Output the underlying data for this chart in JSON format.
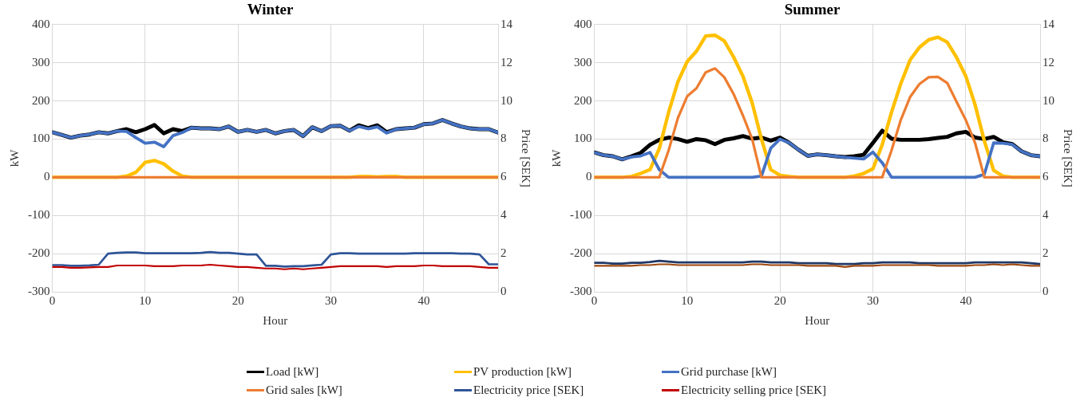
{
  "chart_data": [
    {
      "type": "line",
      "title": "Winter",
      "xlabel": "Hour",
      "ylabel": "kW",
      "y2label": "Price [SEK]",
      "x": [
        0,
        1,
        2,
        3,
        4,
        5,
        6,
        7,
        8,
        9,
        10,
        11,
        12,
        13,
        14,
        15,
        16,
        17,
        18,
        19,
        20,
        21,
        22,
        23,
        24,
        25,
        26,
        27,
        28,
        29,
        30,
        31,
        32,
        33,
        34,
        35,
        36,
        37,
        38,
        39,
        40,
        41,
        42,
        43,
        44,
        45,
        46,
        47,
        48
      ],
      "xlim": [
        0,
        48
      ],
      "xticks": [
        0,
        10,
        20,
        30,
        40
      ],
      "ylim": [
        -300,
        400
      ],
      "yticks": [
        -300,
        -200,
        -100,
        0,
        100,
        200,
        300,
        400
      ],
      "y2lim": [
        0,
        14
      ],
      "y2ticks": [
        0,
        2,
        4,
        6,
        8,
        10,
        12,
        14
      ],
      "grid": true,
      "legend": "bottom",
      "marker": "none",
      "line_style": "solid",
      "series": [
        {
          "name": "Load [kW]",
          "color": "#000000",
          "values": [
            118,
            111,
            104,
            109,
            112,
            118,
            115,
            121,
            126,
            118,
            126,
            137,
            115,
            126,
            121,
            130,
            128,
            128,
            126,
            133,
            119,
            124,
            119,
            124,
            115,
            121,
            124,
            108,
            131,
            121,
            134,
            135,
            122,
            136,
            129,
            136,
            118,
            126,
            128,
            130,
            139,
            141,
            150,
            141,
            133,
            128,
            126,
            126,
            117
          ]
        },
        {
          "name": "PV production [kW]",
          "color": "#ffc000",
          "values": [
            0,
            0,
            0,
            0,
            0,
            0,
            0,
            0,
            3,
            13,
            39,
            44,
            35,
            16,
            3,
            0,
            0,
            0,
            0,
            0,
            0,
            0,
            0,
            0,
            0,
            0,
            0,
            0,
            0,
            0,
            0,
            0,
            0,
            2,
            2,
            1,
            2,
            2,
            0,
            0,
            0,
            0,
            0,
            0,
            0,
            0,
            0,
            0,
            0
          ]
        },
        {
          "name": "Grid purchase [kW]",
          "color": "#4472c4",
          "values": [
            118,
            111,
            104,
            109,
            112,
            118,
            115,
            121,
            120,
            104,
            89,
            92,
            80,
            109,
            117,
            130,
            128,
            128,
            126,
            133,
            119,
            124,
            119,
            124,
            115,
            121,
            124,
            108,
            131,
            121,
            134,
            135,
            122,
            133,
            127,
            132,
            116,
            126,
            128,
            130,
            139,
            141,
            150,
            141,
            133,
            128,
            126,
            126,
            117
          ]
        },
        {
          "name": "Grid sales [kW]",
          "color": "#ed7d31",
          "values": [
            0,
            0,
            0,
            0,
            0,
            0,
            0,
            0,
            0,
            0,
            0,
            0,
            0,
            0,
            0,
            0,
            0,
            0,
            0,
            0,
            0,
            0,
            0,
            0,
            0,
            0,
            0,
            0,
            0,
            0,
            0,
            0,
            0,
            0,
            0,
            0,
            0,
            0,
            0,
            0,
            0,
            0,
            0,
            0,
            0,
            0,
            0,
            0,
            0
          ]
        },
        {
          "name": "Electricity price [SEK]",
          "color": "#2f5597",
          "axis": "y2",
          "values": [
            1.4,
            1.4,
            1.36,
            1.36,
            1.38,
            1.42,
            2.0,
            2.04,
            2.06,
            2.06,
            2.02,
            2.02,
            2.02,
            2.02,
            2.02,
            2.02,
            2.04,
            2.08,
            2.04,
            2.04,
            2.0,
            1.96,
            1.96,
            1.36,
            1.36,
            1.32,
            1.34,
            1.34,
            1.38,
            1.42,
            1.96,
            2.02,
            2.02,
            2.0,
            2.0,
            2.0,
            2.0,
            2.0,
            2.0,
            2.02,
            2.02,
            2.02,
            2.02,
            2.02,
            2.0,
            2.0,
            1.96,
            1.44,
            1.44
          ]
        },
        {
          "name": "Electricity selling price [SEK]",
          "color": "#c00000",
          "axis": "y2",
          "values": [
            1.3,
            1.3,
            1.26,
            1.26,
            1.28,
            1.3,
            1.3,
            1.38,
            1.38,
            1.38,
            1.38,
            1.34,
            1.34,
            1.34,
            1.38,
            1.38,
            1.38,
            1.42,
            1.38,
            1.34,
            1.3,
            1.3,
            1.26,
            1.22,
            1.22,
            1.18,
            1.22,
            1.18,
            1.22,
            1.26,
            1.3,
            1.34,
            1.34,
            1.34,
            1.34,
            1.34,
            1.3,
            1.34,
            1.34,
            1.34,
            1.38,
            1.38,
            1.34,
            1.34,
            1.34,
            1.34,
            1.3,
            1.26,
            1.26
          ]
        }
      ]
    },
    {
      "type": "line",
      "title": "Summer",
      "xlabel": "Hour",
      "ylabel": "kW",
      "y2label": "Price [SEK]",
      "x": [
        0,
        1,
        2,
        3,
        4,
        5,
        6,
        7,
        8,
        9,
        10,
        11,
        12,
        13,
        14,
        15,
        16,
        17,
        18,
        19,
        20,
        21,
        22,
        23,
        24,
        25,
        26,
        27,
        28,
        29,
        30,
        31,
        32,
        33,
        34,
        35,
        36,
        37,
        38,
        39,
        40,
        41,
        42,
        43,
        44,
        45,
        46,
        47,
        48
      ],
      "xlim": [
        0,
        48
      ],
      "xticks": [
        0,
        10,
        20,
        30,
        40
      ],
      "ylim": [
        -300,
        400
      ],
      "yticks": [
        -300,
        -200,
        -100,
        0,
        100,
        200,
        300,
        400
      ],
      "y2lim": [
        0,
        14
      ],
      "y2ticks": [
        0,
        2,
        4,
        6,
        8,
        10,
        12,
        14
      ],
      "grid": true,
      "marker": "none",
      "line_style": "solid",
      "series": [
        {
          "color": "#000000",
          "values": [
            65,
            58,
            55,
            47,
            55,
            64,
            85,
            98,
            104,
            100,
            93,
            100,
            97,
            87,
            98,
            102,
            108,
            101,
            104,
            96,
            104,
            90,
            72,
            56,
            60,
            58,
            55,
            53,
            55,
            59,
            90,
            122,
            101,
            98,
            98,
            98,
            100,
            103,
            106,
            115,
            119,
            104,
            100,
            106,
            92,
            87,
            68,
            58,
            55
          ]
        },
        {
          "color": "#ffc000",
          "values": [
            0,
            0,
            0,
            0,
            2,
            10,
            20,
            75,
            170,
            250,
            303,
            330,
            370,
            372,
            357,
            315,
            265,
            195,
            100,
            20,
            5,
            2,
            0,
            0,
            0,
            0,
            0,
            0,
            3,
            10,
            22,
            85,
            170,
            245,
            307,
            340,
            360,
            367,
            354,
            314,
            265,
            190,
            95,
            18,
            3,
            0,
            0,
            0,
            0
          ]
        },
        {
          "color": "#4472c4",
          "values": [
            65,
            58,
            55,
            47,
            53,
            56,
            65,
            20,
            0,
            0,
            0,
            0,
            0,
            0,
            0,
            0,
            0,
            0,
            3,
            76,
            100,
            90,
            72,
            56,
            60,
            58,
            55,
            52,
            50,
            48,
            66,
            38,
            0,
            0,
            0,
            0,
            0,
            0,
            0,
            0,
            0,
            0,
            8,
            90,
            89,
            86,
            68,
            58,
            55
          ]
        },
        {
          "color": "#ed7d31",
          "values": [
            0,
            0,
            0,
            0,
            0,
            0,
            0,
            0,
            70,
            155,
            212,
            233,
            275,
            285,
            262,
            218,
            162,
            100,
            0,
            0,
            0,
            0,
            0,
            0,
            0,
            0,
            0,
            0,
            0,
            0,
            0,
            0,
            70,
            150,
            210,
            244,
            262,
            263,
            247,
            198,
            150,
            90,
            0,
            0,
            0,
            0,
            0,
            0,
            0
          ]
        },
        {
          "color": "#203864",
          "axis": "y2",
          "values": [
            1.52,
            1.52,
            1.48,
            1.48,
            1.52,
            1.52,
            1.56,
            1.62,
            1.58,
            1.54,
            1.54,
            1.54,
            1.54,
            1.54,
            1.54,
            1.54,
            1.54,
            1.58,
            1.58,
            1.54,
            1.54,
            1.54,
            1.5,
            1.5,
            1.5,
            1.5,
            1.46,
            1.46,
            1.46,
            1.5,
            1.5,
            1.54,
            1.54,
            1.54,
            1.54,
            1.5,
            1.5,
            1.5,
            1.5,
            1.5,
            1.5,
            1.54,
            1.54,
            1.54,
            1.54,
            1.54,
            1.54,
            1.5,
            1.46
          ]
        },
        {
          "color": "#9e480e",
          "axis": "y2",
          "values": [
            1.36,
            1.36,
            1.36,
            1.36,
            1.36,
            1.4,
            1.4,
            1.44,
            1.44,
            1.4,
            1.4,
            1.4,
            1.4,
            1.4,
            1.4,
            1.4,
            1.4,
            1.44,
            1.44,
            1.4,
            1.4,
            1.4,
            1.4,
            1.36,
            1.36,
            1.36,
            1.36,
            1.3,
            1.36,
            1.36,
            1.36,
            1.4,
            1.4,
            1.4,
            1.4,
            1.4,
            1.4,
            1.36,
            1.36,
            1.36,
            1.36,
            1.4,
            1.4,
            1.44,
            1.4,
            1.44,
            1.4,
            1.36,
            1.36
          ]
        }
      ]
    }
  ]
}
